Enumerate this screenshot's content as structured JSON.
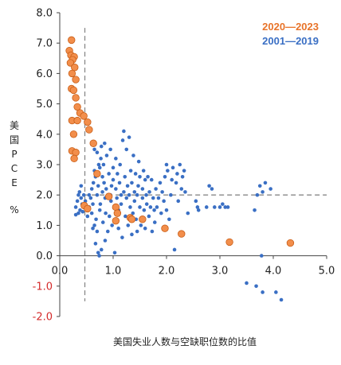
{
  "chart_data": {
    "type": "scatter",
    "xlabel": "美国失业人数与空缺职位数的比值",
    "ylabel_chars": [
      "美",
      "国",
      "P",
      "C",
      "E",
      "",
      "%"
    ],
    "xlim": [
      0,
      5
    ],
    "ylim": [
      -2,
      8
    ],
    "xticks": [
      "0.0",
      "1.0",
      "2.0",
      "3.0",
      "4.0",
      "5.0"
    ],
    "yticks": [
      "-2.0",
      "-1.0",
      "0.0",
      "1.0",
      "2.0",
      "3.0",
      "4.0",
      "5.0",
      "6.0",
      "7.0",
      "8.0"
    ],
    "reference_lines": {
      "vertical_x": 0.47,
      "horizontal_y": 2.0
    },
    "colors": {
      "orange": "#e8742a",
      "orange_fill": "#f28e4b",
      "blue": "#3a6fc4",
      "negative_tick": "#d42a2a",
      "axis": "#444444",
      "ref_line": "#888888"
    },
    "series": [
      {
        "name": "2020—2023",
        "color": "#e8742a",
        "points": [
          [
            0.22,
            7.1
          ],
          [
            0.18,
            6.75
          ],
          [
            0.21,
            6.6
          ],
          [
            0.27,
            6.55
          ],
          [
            0.24,
            6.45
          ],
          [
            0.2,
            6.35
          ],
          [
            0.28,
            6.2
          ],
          [
            0.23,
            6.0
          ],
          [
            0.3,
            5.8
          ],
          [
            0.22,
            5.5
          ],
          [
            0.26,
            5.45
          ],
          [
            0.3,
            5.2
          ],
          [
            0.33,
            4.9
          ],
          [
            0.38,
            4.7
          ],
          [
            0.45,
            4.6
          ],
          [
            0.23,
            4.45
          ],
          [
            0.33,
            4.45
          ],
          [
            0.52,
            4.4
          ],
          [
            0.55,
            4.15
          ],
          [
            0.26,
            4.0
          ],
          [
            0.23,
            3.45
          ],
          [
            0.3,
            3.4
          ],
          [
            0.27,
            3.2
          ],
          [
            0.63,
            3.7
          ],
          [
            0.7,
            2.7
          ],
          [
            0.92,
            1.95
          ],
          [
            0.46,
            1.65
          ],
          [
            0.52,
            1.55
          ],
          [
            1.05,
            1.6
          ],
          [
            1.08,
            1.4
          ],
          [
            1.05,
            1.15
          ],
          [
            1.32,
            1.25
          ],
          [
            1.35,
            1.2
          ],
          [
            1.55,
            1.2
          ],
          [
            1.97,
            0.9
          ],
          [
            2.28,
            0.72
          ],
          [
            3.18,
            0.45
          ],
          [
            4.32,
            0.42
          ]
        ]
      },
      {
        "name": "2001—2019",
        "color": "#3a6fc4",
        "points": [
          [
            0.3,
            1.35
          ],
          [
            0.3,
            1.6
          ],
          [
            0.33,
            1.8
          ],
          [
            0.35,
            2.0
          ],
          [
            0.35,
            1.4
          ],
          [
            0.37,
            2.1
          ],
          [
            0.38,
            1.5
          ],
          [
            0.4,
            1.9
          ],
          [
            0.4,
            2.3
          ],
          [
            0.42,
            1.7
          ],
          [
            0.43,
            1.45
          ],
          [
            0.45,
            2.0
          ],
          [
            0.47,
            1.6
          ],
          [
            0.48,
            1.8
          ],
          [
            0.52,
            1.3
          ],
          [
            0.53,
            1.5
          ],
          [
            0.55,
            2.0
          ],
          [
            0.55,
            1.6
          ],
          [
            0.58,
            1.9
          ],
          [
            0.6,
            2.2
          ],
          [
            0.6,
            1.4
          ],
          [
            0.62,
            1.7
          ],
          [
            0.62,
            0.9
          ],
          [
            0.63,
            2.4
          ],
          [
            0.65,
            1.0
          ],
          [
            0.65,
            2.8
          ],
          [
            0.65,
            3.5
          ],
          [
            0.67,
            2.6
          ],
          [
            0.67,
            0.4
          ],
          [
            0.68,
            1.2
          ],
          [
            0.7,
            2.0
          ],
          [
            0.7,
            0.8
          ],
          [
            0.7,
            3.4
          ],
          [
            0.72,
            2.3
          ],
          [
            0.72,
            0.1
          ],
          [
            0.73,
            3.0
          ],
          [
            0.74,
            0.0
          ],
          [
            0.75,
            1.5
          ],
          [
            0.75,
            2.9
          ],
          [
            0.76,
            1.7
          ],
          [
            0.77,
            3.2
          ],
          [
            0.78,
            3.6
          ],
          [
            0.78,
            0.2
          ],
          [
            0.8,
            2.1
          ],
          [
            0.8,
            2.6
          ],
          [
            0.81,
            1.1
          ],
          [
            0.82,
            3.0
          ],
          [
            0.83,
            2.4
          ],
          [
            0.84,
            3.7
          ],
          [
            0.85,
            1.9
          ],
          [
            0.85,
            0.5
          ],
          [
            0.86,
            1.4
          ],
          [
            0.87,
            2.2
          ],
          [
            0.88,
            3.3
          ],
          [
            0.9,
            2.0
          ],
          [
            0.9,
            0.8
          ],
          [
            0.92,
            2.7
          ],
          [
            0.93,
            1.3
          ],
          [
            0.95,
            2.0
          ],
          [
            0.95,
            3.5
          ],
          [
            0.96,
            1.8
          ],
          [
            0.97,
            2.3
          ],
          [
            0.98,
            1.0
          ],
          [
            1.0,
            2.5
          ],
          [
            1.0,
            2.9
          ],
          [
            1.02,
            1.6
          ],
          [
            1.03,
            0.1
          ],
          [
            1.05,
            2.2
          ],
          [
            1.05,
            3.2
          ],
          [
            1.07,
            1.9
          ],
          [
            1.08,
            2.7
          ],
          [
            1.1,
            1.5
          ],
          [
            1.1,
            0.9
          ],
          [
            1.12,
            2.4
          ],
          [
            1.13,
            3.0
          ],
          [
            1.15,
            1.7
          ],
          [
            1.15,
            2.0
          ],
          [
            1.17,
            0.6
          ],
          [
            1.18,
            3.8
          ],
          [
            1.2,
            2.1
          ],
          [
            1.2,
            4.1
          ],
          [
            1.22,
            2.6
          ],
          [
            1.23,
            1.3
          ],
          [
            1.25,
            1.9
          ],
          [
            1.25,
            3.5
          ],
          [
            1.27,
            2.3
          ],
          [
            1.28,
            1.0
          ],
          [
            1.3,
            3.9
          ],
          [
            1.3,
            2.0
          ],
          [
            1.32,
            1.6
          ],
          [
            1.33,
            2.8
          ],
          [
            1.35,
            0.7
          ],
          [
            1.35,
            2.4
          ],
          [
            1.37,
            1.4
          ],
          [
            1.38,
            3.3
          ],
          [
            1.4,
            2.1
          ],
          [
            1.4,
            1.8
          ],
          [
            1.42,
            2.7
          ],
          [
            1.43,
            1.2
          ],
          [
            1.45,
            2.0
          ],
          [
            1.45,
            0.8
          ],
          [
            1.47,
            2.3
          ],
          [
            1.48,
            3.1
          ],
          [
            1.5,
            1.6
          ],
          [
            1.5,
            2.6
          ],
          [
            1.52,
            1.0
          ],
          [
            1.55,
            2.2
          ],
          [
            1.55,
            1.9
          ],
          [
            1.57,
            2.8
          ],
          [
            1.58,
            1.5
          ],
          [
            1.6,
            2.5
          ],
          [
            1.6,
            0.9
          ],
          [
            1.62,
            2.0
          ],
          [
            1.63,
            1.7
          ],
          [
            1.65,
            2.6
          ],
          [
            1.67,
            1.3
          ],
          [
            1.68,
            2.1
          ],
          [
            1.7,
            1.6
          ],
          [
            1.72,
            2.5
          ],
          [
            1.73,
            0.8
          ],
          [
            1.75,
            1.9
          ],
          [
            1.77,
            1.5
          ],
          [
            1.78,
            1.1
          ],
          [
            1.8,
            2.2
          ],
          [
            1.82,
            1.6
          ],
          [
            1.85,
            1.9
          ],
          [
            1.88,
            2.4
          ],
          [
            1.9,
            1.4
          ],
          [
            1.92,
            2.1
          ],
          [
            1.95,
            1.8
          ],
          [
            1.97,
            2.6
          ],
          [
            2.0,
            1.5
          ],
          [
            2.0,
            3.0
          ],
          [
            2.02,
            2.8
          ],
          [
            2.05,
            1.2
          ],
          [
            2.08,
            2.0
          ],
          [
            2.1,
            2.5
          ],
          [
            2.12,
            2.9
          ],
          [
            2.15,
            0.2
          ],
          [
            2.18,
            2.4
          ],
          [
            2.2,
            2.7
          ],
          [
            2.22,
            1.8
          ],
          [
            2.25,
            3.0
          ],
          [
            2.28,
            2.2
          ],
          [
            2.3,
            2.6
          ],
          [
            2.33,
            2.8
          ],
          [
            2.35,
            2.1
          ],
          [
            2.4,
            1.4
          ],
          [
            2.55,
            1.8
          ],
          [
            2.58,
            1.6
          ],
          [
            2.6,
            1.5
          ],
          [
            2.75,
            1.6
          ],
          [
            2.8,
            2.3
          ],
          [
            2.85,
            2.2
          ],
          [
            2.9,
            1.6
          ],
          [
            3.0,
            1.6
          ],
          [
            3.05,
            1.7
          ],
          [
            3.1,
            1.6
          ],
          [
            3.15,
            1.6
          ],
          [
            3.5,
            -0.9
          ],
          [
            3.65,
            1.5
          ],
          [
            3.68,
            -1.0
          ],
          [
            3.7,
            2.0
          ],
          [
            3.75,
            2.3
          ],
          [
            3.78,
            0.0
          ],
          [
            3.8,
            2.1
          ],
          [
            3.8,
            -1.2
          ],
          [
            3.85,
            2.4
          ],
          [
            3.95,
            2.2
          ],
          [
            4.05,
            -1.2
          ],
          [
            4.15,
            -1.45
          ]
        ]
      }
    ]
  }
}
